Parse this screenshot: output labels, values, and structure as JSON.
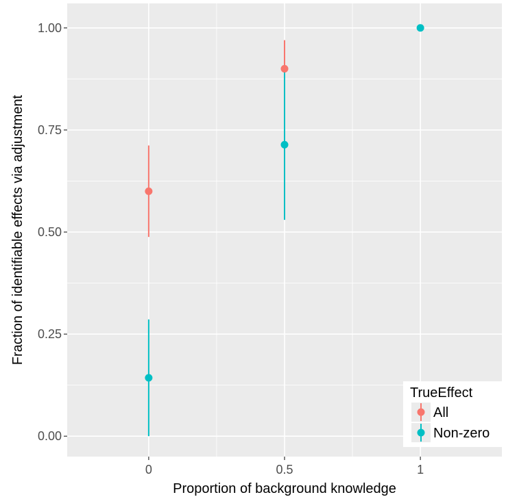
{
  "chart_data": {
    "type": "scatter",
    "title": "",
    "xlabel": "Proportion of background knowledge",
    "ylabel": "Fraction of identifiable effects via adjustment",
    "x_ticks": [
      "0",
      "0.5",
      "1"
    ],
    "y_ticks": [
      "0.00",
      "0.25",
      "0.50",
      "0.75",
      "1.00"
    ],
    "xlim": [
      -0.3,
      1.3
    ],
    "ylim": [
      -0.05,
      1.06
    ],
    "grid": true,
    "legend": {
      "title": "TrueEffect",
      "position": "bottom-right"
    },
    "series": [
      {
        "name": "All",
        "color": "#F8766D",
        "points": [
          {
            "x": 0,
            "y": 0.6,
            "ymin": 0.488,
            "ymax": 0.712
          },
          {
            "x": 0.5,
            "y": 0.9,
            "ymin": 0.83,
            "ymax": 0.97
          }
        ]
      },
      {
        "name": "Non-zero",
        "color": "#00BFC4",
        "points": [
          {
            "x": 0,
            "y": 0.143,
            "ymin": 0.0,
            "ymax": 0.286
          },
          {
            "x": 0.5,
            "y": 0.714,
            "ymin": 0.53,
            "ymax": 0.895
          },
          {
            "x": 1,
            "y": 1.0,
            "ymin": 1.0,
            "ymax": 1.0
          }
        ]
      }
    ]
  }
}
